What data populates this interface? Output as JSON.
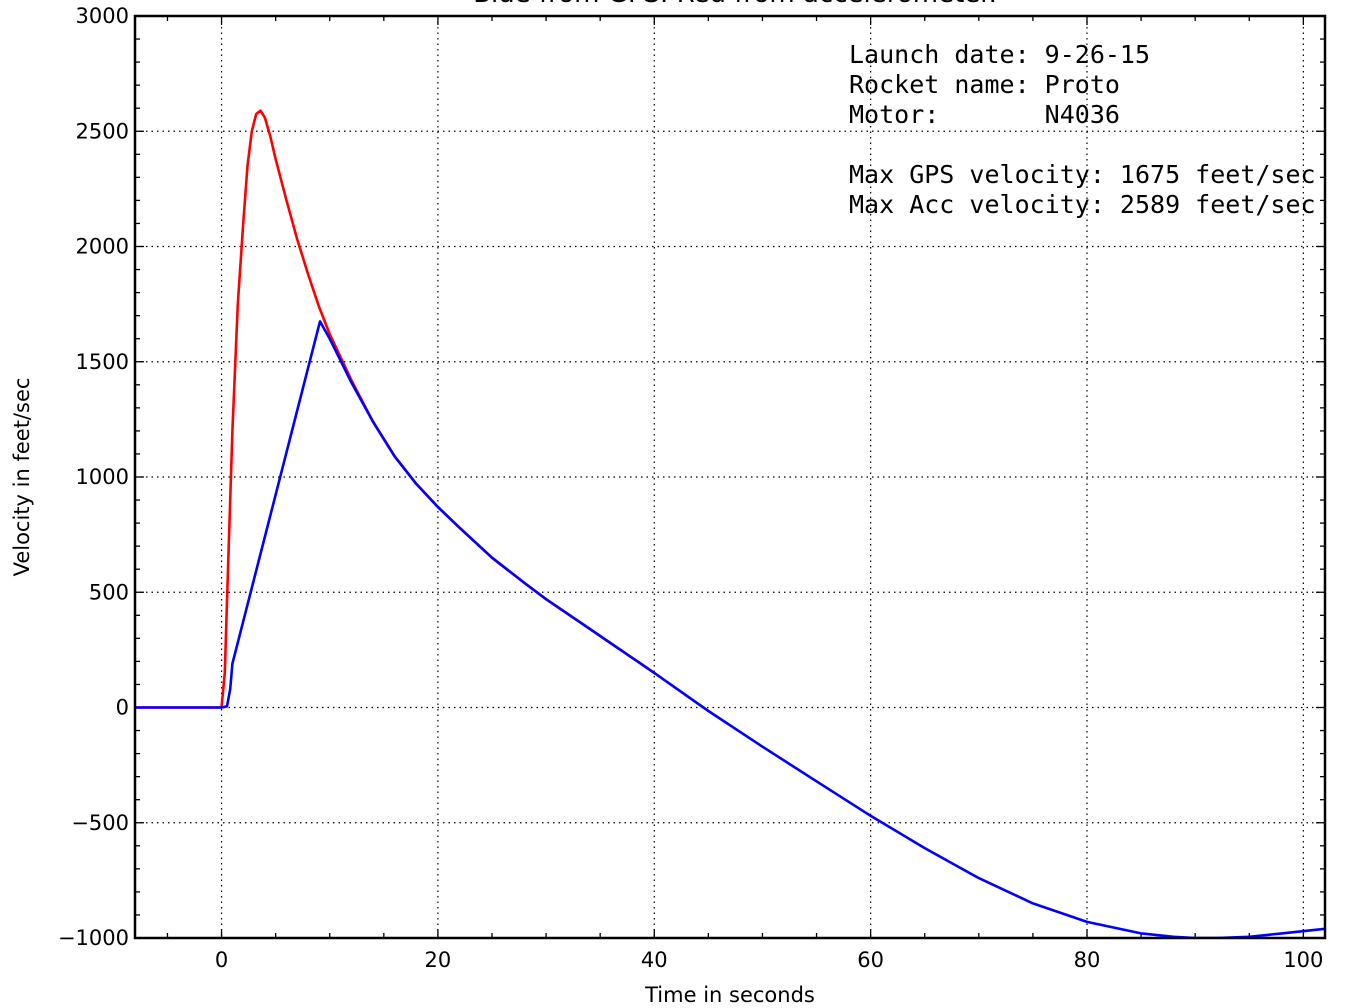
{
  "chart_data": {
    "type": "line",
    "title": "Blue from GPS.   Red from accelerometer.",
    "xlabel": "Time in seconds",
    "ylabel": "Velocity in feet/sec",
    "xlim": [
      -8,
      102
    ],
    "ylim": [
      -1000,
      3000
    ],
    "xticks": [
      0,
      20,
      40,
      60,
      80,
      100
    ],
    "yticks": [
      -1000,
      -500,
      0,
      500,
      1000,
      1500,
      2000,
      2500,
      3000
    ],
    "xtick_labels": [
      "0",
      "20",
      "40",
      "60",
      "80",
      "100"
    ],
    "ytick_labels": [
      "−1000",
      "−500",
      "0",
      "500",
      "1000",
      "1500",
      "2000",
      "2500",
      "3000"
    ],
    "grid": true,
    "annotations": [
      "Launch date: 9-26-15",
      "Rocket name: Proto",
      "Motor:       N4036",
      "",
      "Max GPS velocity: 1675 feet/sec",
      "Max Acc velocity: 2589 feet/sec"
    ],
    "series": [
      {
        "color": "#ff0000",
        "x": [
          -8,
          0,
          0.3,
          0.6,
          1.0,
          1.5,
          2.0,
          2.4,
          2.8,
          3.2,
          3.6,
          4.0,
          4.5,
          5.0,
          6.0,
          7.0,
          8.0,
          9.0,
          10.0,
          12.0,
          14.0,
          16.0,
          18.0,
          20.0,
          22.0,
          25.0,
          28.0,
          30.0,
          35.0,
          40.0
        ],
        "y": [
          0,
          0,
          150,
          600,
          1200,
          1750,
          2100,
          2350,
          2500,
          2575,
          2589,
          2560,
          2480,
          2380,
          2200,
          2030,
          1880,
          1740,
          1620,
          1420,
          1240,
          1090,
          970,
          870,
          780,
          650,
          540,
          470,
          310,
          150
        ]
      },
      {
        "color": "#0000ff",
        "x": [
          -8,
          0,
          0.5,
          0.8,
          1.0,
          9.1,
          10,
          12,
          14,
          16,
          18,
          20,
          22,
          25,
          28,
          30,
          35,
          40,
          45,
          50,
          55,
          60,
          65,
          70,
          75,
          80,
          85,
          88,
          90,
          92,
          95,
          98,
          102
        ],
        "y": [
          0,
          0,
          5,
          80,
          190,
          1675,
          1600,
          1410,
          1240,
          1090,
          970,
          870,
          780,
          650,
          540,
          470,
          310,
          150,
          -15,
          -170,
          -320,
          -470,
          -610,
          -740,
          -850,
          -930,
          -980,
          -995,
          -1000,
          -1000,
          -995,
          -980,
          -960
        ]
      }
    ]
  }
}
